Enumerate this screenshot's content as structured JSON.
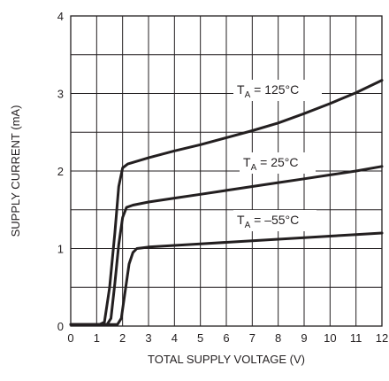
{
  "chart_data": {
    "type": "line",
    "title": "",
    "xlabel": "TOTAL SUPPLY VOLTAGE (V)",
    "ylabel": "SUPPLY CURRENT (mA)",
    "xlim": [
      0,
      12
    ],
    "ylim": [
      0,
      4
    ],
    "x_ticks": [
      "0",
      "1",
      "2",
      "3",
      "4",
      "5",
      "6",
      "7",
      "8",
      "9",
      "10",
      "11",
      "12"
    ],
    "y_ticks": [
      "0",
      "1",
      "2",
      "3",
      "4"
    ],
    "grid": true,
    "series": [
      {
        "name": "125°C",
        "label_main": "T",
        "label_sub": "A",
        "label_rest": " = 125°C",
        "x": [
          0,
          1.1,
          1.3,
          1.5,
          1.7,
          1.85,
          2.0,
          2.2,
          3,
          4,
          5,
          6,
          7,
          8,
          9,
          10,
          11,
          12
        ],
        "y": [
          0.02,
          0.02,
          0.05,
          0.5,
          1.2,
          1.8,
          2.04,
          2.09,
          2.17,
          2.26,
          2.34,
          2.43,
          2.52,
          2.62,
          2.74,
          2.87,
          3.01,
          3.17
        ]
      },
      {
        "name": "25°C",
        "label_main": "T",
        "label_sub": "A",
        "label_rest": " = 25°C",
        "x": [
          0,
          1.4,
          1.55,
          1.7,
          1.85,
          2.0,
          2.15,
          2.4,
          3,
          4,
          5,
          6,
          7,
          8,
          9,
          10,
          11,
          12
        ],
        "y": [
          0.02,
          0.02,
          0.1,
          0.55,
          1.05,
          1.4,
          1.53,
          1.56,
          1.6,
          1.65,
          1.7,
          1.75,
          1.8,
          1.85,
          1.9,
          1.95,
          2.0,
          2.06
        ]
      },
      {
        "name": "-55°C",
        "label_main": "T",
        "label_sub": "A",
        "label_rest": " = –55°C",
        "x": [
          0,
          1.8,
          1.95,
          2.1,
          2.25,
          2.4,
          2.55,
          2.8,
          3,
          4,
          5,
          6,
          7,
          8,
          9,
          10,
          11,
          12
        ],
        "y": [
          0.02,
          0.02,
          0.1,
          0.45,
          0.8,
          0.95,
          1.0,
          1.01,
          1.02,
          1.04,
          1.06,
          1.08,
          1.1,
          1.12,
          1.14,
          1.16,
          1.18,
          1.2
        ]
      }
    ]
  }
}
